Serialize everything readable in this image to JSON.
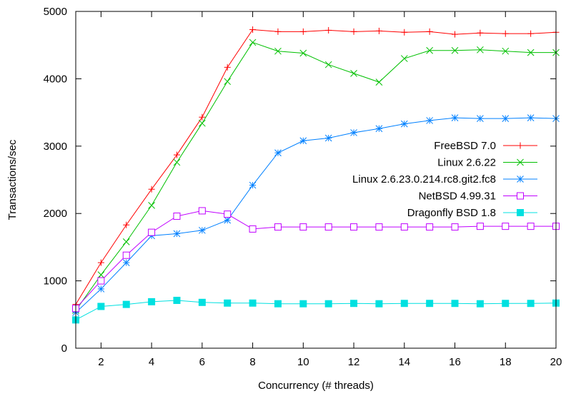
{
  "chart_data": {
    "type": "line",
    "title": "",
    "xlabel": "Concurrency (# threads)",
    "ylabel": "Transactions/sec",
    "xlim": [
      1,
      20
    ],
    "ylim": [
      0,
      5000
    ],
    "xticks": [
      2,
      4,
      6,
      8,
      10,
      12,
      14,
      16,
      18,
      20
    ],
    "yticks": [
      0,
      1000,
      2000,
      3000,
      4000,
      5000
    ],
    "grid": false,
    "legend_position": "right",
    "x": [
      1,
      2,
      3,
      4,
      5,
      6,
      7,
      8,
      9,
      10,
      11,
      12,
      13,
      14,
      15,
      16,
      17,
      18,
      19,
      20
    ],
    "series": [
      {
        "name": "FreeBSD 7.0",
        "color": "#ff0000",
        "marker": "plus",
        "values": [
          650,
          1270,
          1830,
          2360,
          2870,
          3430,
          4170,
          4730,
          4700,
          4700,
          4720,
          4700,
          4710,
          4690,
          4700,
          4660,
          4680,
          4670,
          4670,
          4690
        ]
      },
      {
        "name": "Linux 2.6.22",
        "color": "#00c000",
        "marker": "cross",
        "values": [
          560,
          1090,
          1580,
          2120,
          2760,
          3340,
          3960,
          4540,
          4410,
          4380,
          4210,
          4080,
          3950,
          4300,
          4420,
          4420,
          4430,
          4410,
          4390,
          4390
        ]
      },
      {
        "name": "Linux 2.6.23.0.214.rc8.git2.fc8",
        "color": "#0080ff",
        "marker": "star",
        "values": [
          530,
          880,
          1270,
          1670,
          1700,
          1750,
          1900,
          2420,
          2900,
          3080,
          3120,
          3200,
          3260,
          3330,
          3380,
          3420,
          3410,
          3410,
          3420,
          3410
        ]
      },
      {
        "name": "NetBSD 4.99.31",
        "color": "#c000ff",
        "marker": "open-square",
        "values": [
          590,
          1000,
          1380,
          1720,
          1960,
          2040,
          1990,
          1770,
          1800,
          1800,
          1800,
          1800,
          1800,
          1800,
          1800,
          1800,
          1810,
          1810,
          1810,
          1810
        ]
      },
      {
        "name": "Dragonfly BSD 1.8",
        "color": "#00e0e0",
        "marker": "filled-square",
        "values": [
          420,
          620,
          650,
          690,
          710,
          680,
          670,
          670,
          660,
          660,
          660,
          665,
          660,
          665,
          665,
          665,
          660,
          665,
          665,
          670
        ]
      }
    ]
  }
}
